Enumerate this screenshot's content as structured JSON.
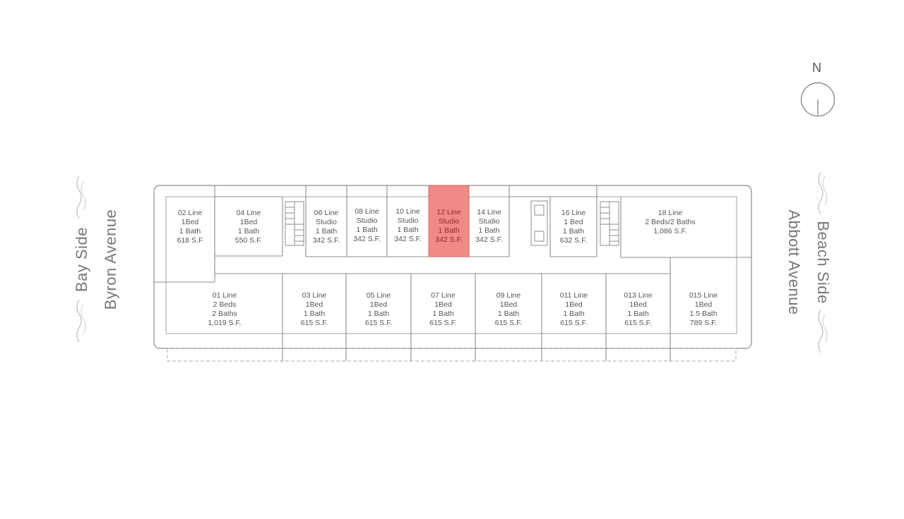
{
  "compass": {
    "label": "N"
  },
  "labels": {
    "bay_side": "Bay Side",
    "byron_avenue": "Byron Avenue",
    "beach_side": "Beach Side",
    "abbott_avenue": "Abbott Avenue"
  },
  "units_top": [
    {
      "id": "02",
      "lines": [
        "02 Line",
        "1Bed",
        "1 Bath",
        "618 S.F"
      ]
    },
    {
      "id": "04",
      "lines": [
        "04 Line",
        "1Bed",
        "1 Bath",
        "550 S.F."
      ]
    },
    {
      "id": "06",
      "lines": [
        "06 Line",
        "Studio",
        "1 Bath",
        "342 S.F."
      ]
    },
    {
      "id": "08",
      "lines": [
        "08 Line",
        "Studio",
        "1 Bath",
        "342 S.F."
      ]
    },
    {
      "id": "10",
      "lines": [
        "10 Line",
        "Studio",
        "1 Bath",
        "342 S.F."
      ]
    },
    {
      "id": "12",
      "lines": [
        "12 Line",
        "Studio",
        "1 Bath",
        "342 S.F."
      ],
      "selected": true
    },
    {
      "id": "14",
      "lines": [
        "14 Line",
        "Studio",
        "1 Bath",
        "342 S.F."
      ]
    },
    {
      "id": "16",
      "lines": [
        "16 Line",
        "1 Bed",
        "1 Bath",
        "632 S.F."
      ]
    },
    {
      "id": "18",
      "lines": [
        "18 Line",
        "2 Beds/2 Baths",
        "1,086 S.F."
      ]
    }
  ],
  "units_bottom": [
    {
      "id": "01",
      "lines": [
        "01 Line",
        "2 Beds",
        "2 Baths",
        "1,019 S.F."
      ]
    },
    {
      "id": "03",
      "lines": [
        "03 Line",
        "1Bed",
        "1 Bath",
        "615 S.F."
      ]
    },
    {
      "id": "05",
      "lines": [
        "05 Line",
        "1Bed",
        "1 Bath",
        "615 S.F."
      ]
    },
    {
      "id": "07",
      "lines": [
        "07 Line",
        "1Bed",
        "1 Bath",
        "615 S.F."
      ]
    },
    {
      "id": "09",
      "lines": [
        "09 Line",
        "1Bed",
        "1 Bath",
        "615 S.F."
      ]
    },
    {
      "id": "011",
      "lines": [
        "011 Line",
        "1Bed",
        "1 Bath",
        "615 S.F."
      ]
    },
    {
      "id": "013",
      "lines": [
        "013 Line",
        "1Bed",
        "1 Bath",
        "615 S.F."
      ]
    },
    {
      "id": "015",
      "lines": [
        "015 Line",
        "1Bed",
        "1.5 Bath",
        "789 S.F."
      ]
    }
  ],
  "colors": {
    "selected_fill": "#f08a86",
    "selected_stroke": "#d66a66",
    "line": "#8c8c8c"
  }
}
